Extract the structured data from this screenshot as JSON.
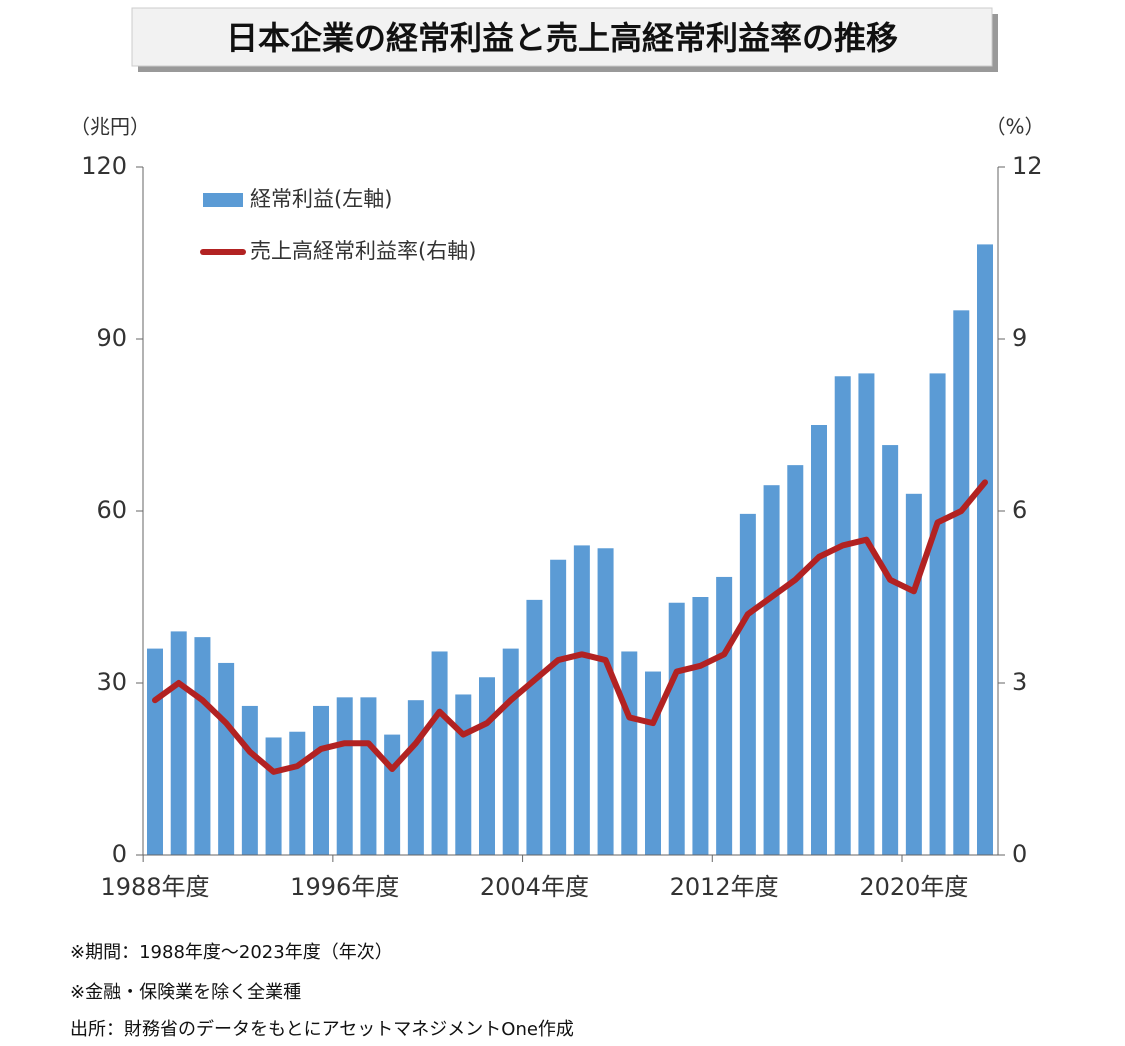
{
  "chart_data": {
    "type": "bar_line",
    "title": "日本企業の経常利益と売上高経常利益率の推移",
    "y_label": "（兆円）",
    "y2_label": "（%）",
    "categories": [
      "1988年度",
      null,
      null,
      null,
      null,
      null,
      null,
      null,
      "1996年度",
      null,
      null,
      null,
      null,
      null,
      null,
      null,
      "2004年度",
      null,
      null,
      null,
      null,
      null,
      null,
      null,
      "2012年度",
      null,
      null,
      null,
      null,
      null,
      null,
      null,
      "2020年度",
      null,
      null,
      null
    ],
    "series": [
      {
        "name": "経常利益(左軸)",
        "type": "bar",
        "color": "#5b9bd5",
        "values": [
          36,
          39,
          38,
          33.5,
          26,
          20.5,
          21.5,
          26,
          27.5,
          27.5,
          21,
          27,
          35.5,
          28,
          31,
          36,
          44.5,
          51.5,
          54,
          53.5,
          35.5,
          32,
          44,
          45,
          48.5,
          59.5,
          64.5,
          68,
          75,
          83.5,
          84,
          71.5,
          63,
          84,
          95,
          106.5
        ]
      },
      {
        "name": "売上高経常利益率(右軸)",
        "type": "line",
        "axis": "y2",
        "color": "#b22222",
        "values": [
          2.7,
          3.0,
          2.7,
          2.3,
          1.8,
          1.45,
          1.55,
          1.85,
          1.95,
          1.95,
          1.5,
          1.95,
          2.5,
          2.1,
          2.3,
          2.7,
          3.05,
          3.4,
          3.5,
          3.4,
          2.4,
          2.3,
          3.2,
          3.3,
          3.5,
          4.2,
          4.5,
          4.8,
          5.2,
          5.4,
          5.5,
          4.8,
          4.6,
          5.8,
          6.0,
          6.5
        ]
      }
    ],
    "ylim": [
      0,
      120
    ],
    "yticks": [
      0,
      30,
      60,
      90,
      120
    ],
    "y2lim": [
      0,
      12
    ],
    "y2ticks": [
      0,
      3,
      6,
      9,
      12
    ],
    "grid": false,
    "legend": "upper left",
    "notes": [
      "※期間：1988年度～2023年度（年次）",
      "※金融・保険業を除く全業種",
      "出所：財務省のデータをもとにアセットマネジメントOne作成"
    ]
  }
}
